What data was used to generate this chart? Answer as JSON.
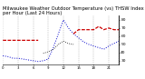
{
  "title": "Milwaukee Weather Outdoor Temperature (vs) THSW Index per Hour (Last 24 Hours)",
  "title_fontsize": 3.8,
  "background_color": "#ffffff",
  "grid_color": "#999999",
  "ylim": [
    25,
    85
  ],
  "yticks": [
    30,
    40,
    50,
    60,
    70,
    80
  ],
  "ytick_fontsize": 3.2,
  "xtick_fontsize": 2.8,
  "hours": [
    0,
    1,
    2,
    3,
    4,
    5,
    6,
    7,
    8,
    9,
    10,
    11,
    12,
    13,
    14,
    15,
    16,
    17,
    18,
    19,
    20,
    21,
    22,
    23
  ],
  "temp_red": [
    55,
    55,
    55,
    55,
    55,
    55,
    55,
    55,
    null,
    null,
    null,
    null,
    null,
    null,
    63,
    68,
    68,
    68,
    68,
    72,
    68,
    70,
    68,
    68
  ],
  "thsw_blue": [
    36,
    35,
    33,
    33,
    32,
    31,
    30,
    29,
    30,
    32,
    46,
    63,
    80,
    70,
    63,
    58,
    53,
    50,
    48,
    46,
    44,
    48,
    51,
    54
  ],
  "temp_black": [
    null,
    null,
    null,
    null,
    null,
    null,
    null,
    null,
    39,
    41,
    44,
    50,
    54,
    51,
    50,
    null,
    null,
    null,
    null,
    null,
    null,
    null,
    null,
    null
  ],
  "red_color": "#cc0000",
  "blue_color": "#0000cc",
  "black_color": "#111111",
  "vgrid_positions": [
    0,
    3,
    6,
    9,
    12,
    15,
    18,
    21,
    23
  ],
  "xlim": [
    0,
    23
  ]
}
